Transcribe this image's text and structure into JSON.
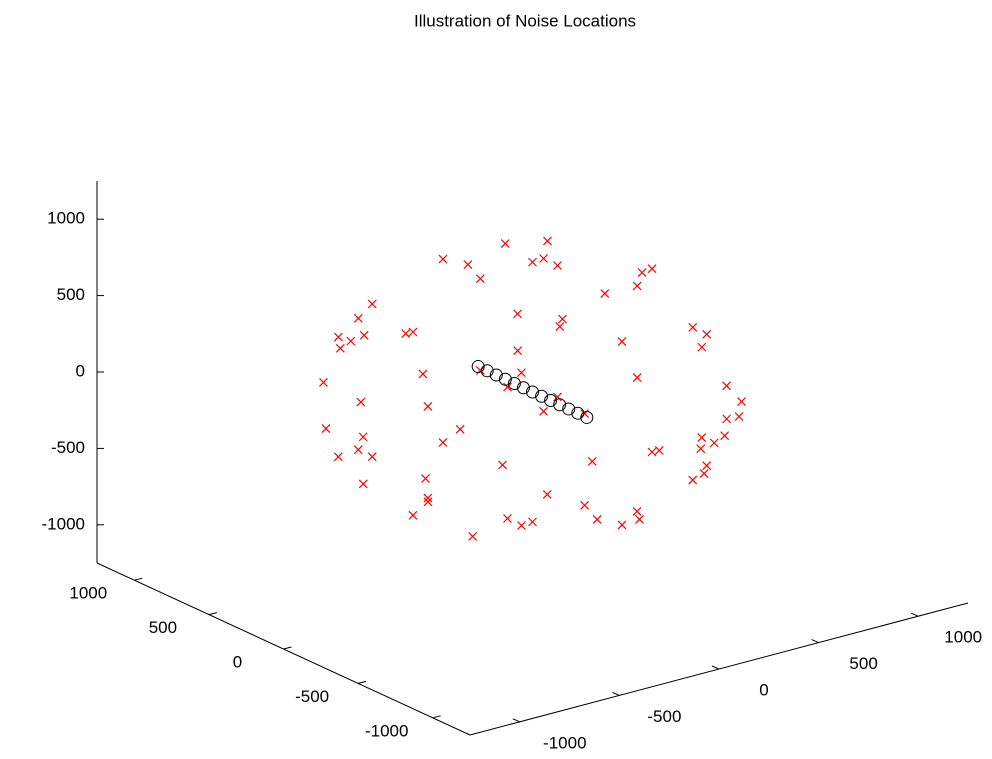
{
  "chart_data": {
    "type": "scatter3d",
    "title": "Illustration of Noise Locations",
    "xlim": [
      -1250,
      1250
    ],
    "ylim": [
      -1250,
      1250
    ],
    "zlim": [
      -1250,
      1250
    ],
    "xticks": [
      -1000,
      -500,
      0,
      500,
      1000
    ],
    "yticks": [
      -1000,
      -500,
      0,
      500,
      1000
    ],
    "zticks": [
      -1000,
      -500,
      0,
      500,
      1000
    ],
    "grid": false,
    "series": [
      {
        "marker": "x",
        "color": "#ff0000",
        "x": [
          850,
          -850,
          0,
          0,
          0,
          0,
          600,
          600,
          -600,
          -600,
          600,
          -600,
          600,
          -600,
          0,
          0,
          0,
          0,
          500,
          500,
          -500,
          -500,
          500,
          500,
          -500,
          -500,
          430,
          -430,
          430,
          -430,
          430,
          -430,
          430,
          -430,
          750,
          750,
          -750,
          -750,
          300,
          -300,
          300,
          -300,
          300,
          -300,
          300,
          -300,
          750,
          -750,
          300,
          -300,
          700,
          -700,
          700,
          -700,
          450,
          -450,
          450,
          -450,
          200,
          -200,
          200,
          -200,
          700,
          -700,
          700,
          -700,
          450,
          -450,
          200,
          -200,
          -650,
          -620,
          -680,
          650,
          620,
          680
        ],
        "y": [
          0,
          0,
          850,
          -850,
          0,
          0,
          600,
          -600,
          600,
          -600,
          0,
          0,
          0,
          0,
          600,
          -600,
          600,
          -600,
          500,
          -500,
          500,
          -500,
          500,
          -500,
          500,
          -500,
          500,
          500,
          -500,
          -500,
          500,
          500,
          -500,
          -500,
          300,
          -300,
          300,
          -300,
          750,
          750,
          -750,
          -750,
          300,
          300,
          -300,
          -300,
          300,
          -300,
          750,
          -750,
          450,
          450,
          -450,
          -450,
          700,
          700,
          -700,
          -700,
          450,
          -450,
          -450,
          450,
          200,
          200,
          -200,
          -200,
          200,
          -200,
          700,
          -700,
          350,
          300,
          380,
          -350,
          -300,
          -380
        ],
        "z": [
          0,
          0,
          0,
          0,
          850,
          -850,
          0,
          0,
          0,
          0,
          600,
          600,
          -600,
          -600,
          600,
          600,
          -600,
          -600,
          430,
          430,
          430,
          430,
          -430,
          -430,
          -430,
          -430,
          500,
          500,
          500,
          500,
          -500,
          -500,
          -500,
          -500,
          300,
          -300,
          -300,
          300,
          300,
          -300,
          -300,
          300,
          750,
          -750,
          -750,
          750,
          -300,
          -300,
          -300,
          -300,
          200,
          -200,
          -200,
          200,
          -200,
          200,
          200,
          -200,
          700,
          700,
          -700,
          -700,
          450,
          -450,
          -450,
          450,
          -700,
          -700,
          450,
          -450,
          400,
          450,
          350,
          -400,
          -450,
          -350
        ]
      },
      {
        "marker": "o",
        "color": "#000000",
        "x": [
          -48,
          -40,
          -32,
          -24,
          -16,
          -8,
          0,
          8,
          16,
          24,
          32,
          40,
          48
        ],
        "y": [
          300,
          250,
          200,
          150,
          100,
          50,
          0,
          -50,
          -100,
          -150,
          -200,
          -250,
          -300
        ],
        "z": [
          48,
          40,
          32,
          24,
          16,
          8,
          0,
          -8,
          -16,
          -24,
          -32,
          -40,
          -48
        ]
      }
    ]
  }
}
